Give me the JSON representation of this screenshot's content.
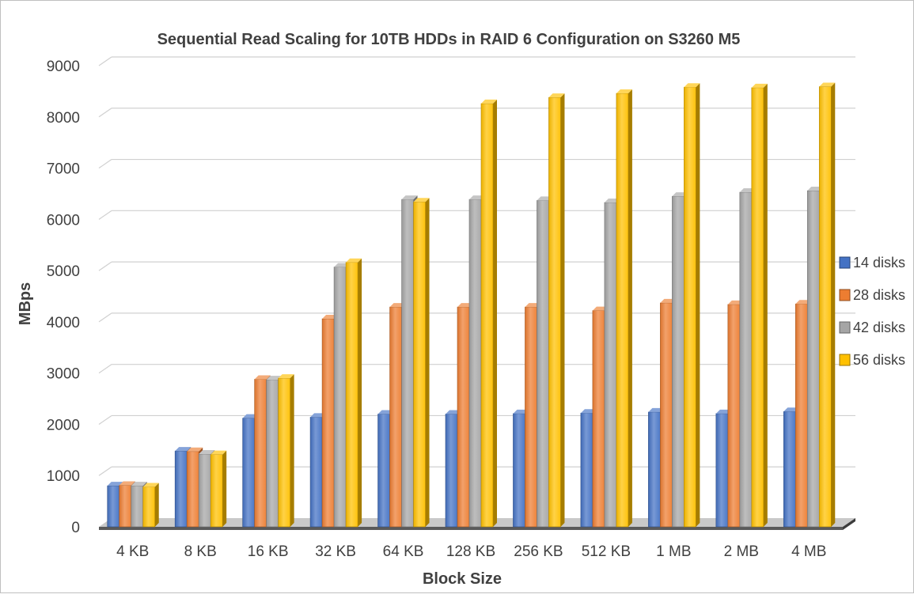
{
  "chart_data": {
    "type": "bar",
    "title": "Sequential Read Scaling for 10TB HDDs in RAID 6 Configuration on S3260 M5",
    "xlabel": "Block Size",
    "ylabel": "MBps",
    "ylim": [
      0,
      9000
    ],
    "yticks": [
      0,
      1000,
      2000,
      3000,
      4000,
      5000,
      6000,
      7000,
      8000,
      9000
    ],
    "grid": true,
    "legend_position": "right",
    "categories": [
      "4 KB",
      "8 KB",
      "16 KB",
      "32 KB",
      "64 KB",
      "128 KB",
      "256 KB",
      "512 KB",
      "1 MB",
      "2 MB",
      "4 MB"
    ],
    "series": [
      {
        "name": "14 disks",
        "color": "#4472c4",
        "values": [
          800,
          1480,
          2120,
          2140,
          2200,
          2200,
          2210,
          2220,
          2240,
          2210,
          2250
        ]
      },
      {
        "name": "28 disks",
        "color": "#ed7d31",
        "values": [
          810,
          1470,
          2880,
          4060,
          4290,
          4290,
          4290,
          4220,
          4370,
          4340,
          4350
        ]
      },
      {
        "name": "42 disks",
        "color": "#a5a5a5",
        "values": [
          800,
          1420,
          2870,
          5070,
          6390,
          6390,
          6370,
          6330,
          6450,
          6530,
          6560
        ]
      },
      {
        "name": "56 disks",
        "color": "#ffc000",
        "values": [
          780,
          1410,
          2900,
          5160,
          6340,
          8260,
          8380,
          8460,
          8580,
          8570,
          8590
        ]
      }
    ]
  }
}
